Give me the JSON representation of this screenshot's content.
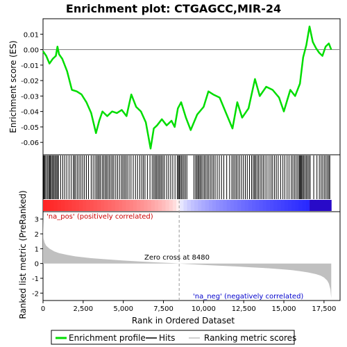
{
  "chart_data": {
    "type": "line",
    "title": "Enrichment plot: CTGAGCC,MIR-24",
    "top_panel": {
      "ylabel": "Enrichment score (ES)",
      "ylim": [
        -0.068,
        0.02
      ],
      "yticks": [
        0.01,
        0.0,
        -0.01,
        -0.02,
        -0.03,
        -0.04,
        -0.05,
        -0.06
      ],
      "ytick_labels": [
        "0.01",
        "0.00",
        "-0.01",
        "-0.02",
        "-0.03",
        "-0.04",
        "-0.05",
        "-0.06"
      ],
      "series": [
        {
          "name": "Enrichment profile",
          "color": "#00dd00",
          "x": [
            0,
            200,
            400,
            600,
            800,
            900,
            1000,
            1200,
            1500,
            1800,
            2100,
            2400,
            2700,
            3000,
            3300,
            3500,
            3700,
            4000,
            4300,
            4600,
            4900,
            5200,
            5500,
            5800,
            6100,
            6400,
            6700,
            6900,
            7100,
            7400,
            7700,
            8000,
            8200,
            8400,
            8600,
            8900,
            9200,
            9600,
            10000,
            10300,
            10600,
            11000,
            11400,
            11800,
            12100,
            12400,
            12800,
            13200,
            13500,
            13900,
            14300,
            14700,
            15000,
            15400,
            15700,
            16000,
            16200,
            16400,
            16600,
            16800,
            17000,
            17200,
            17400,
            17600,
            17800,
            17950
          ],
          "y": [
            -0.001,
            -0.004,
            -0.009,
            -0.006,
            -0.004,
            0.002,
            -0.003,
            -0.006,
            -0.014,
            -0.026,
            -0.027,
            -0.029,
            -0.034,
            -0.041,
            -0.054,
            -0.046,
            -0.04,
            -0.043,
            -0.04,
            -0.041,
            -0.039,
            -0.043,
            -0.029,
            -0.037,
            -0.04,
            -0.047,
            -0.064,
            -0.051,
            -0.049,
            -0.045,
            -0.049,
            -0.046,
            -0.05,
            -0.038,
            -0.034,
            -0.044,
            -0.052,
            -0.042,
            -0.037,
            -0.027,
            -0.029,
            -0.031,
            -0.041,
            -0.051,
            -0.034,
            -0.044,
            -0.038,
            -0.019,
            -0.03,
            -0.024,
            -0.026,
            -0.031,
            -0.04,
            -0.026,
            -0.03,
            -0.022,
            -0.005,
            0.003,
            0.015,
            0.005,
            0.001,
            -0.002,
            -0.004,
            0.002,
            0.004,
            0.0
          ]
        }
      ]
    },
    "hits_panel": {
      "hit_ranks": [
        40,
        90,
        140,
        230,
        300,
        380,
        430,
        480,
        560,
        620,
        690,
        760,
        830,
        900,
        960,
        1100,
        1230,
        1350,
        1480,
        1620,
        1750,
        1880,
        1960,
        2040,
        2150,
        2250,
        2360,
        2470,
        2580,
        2700,
        2830,
        3000,
        3120,
        3240,
        3340,
        3420,
        3500,
        3580,
        3690,
        3780,
        3870,
        3950,
        4040,
        4130,
        4230,
        4320,
        4410,
        4530,
        4640,
        4760,
        4880,
        4970,
        5060,
        5150,
        5240,
        5360,
        5480,
        5620,
        5760,
        5890,
        6030,
        6150,
        6250,
        6350,
        6500,
        6660,
        6800,
        6900,
        6980,
        7060,
        7140,
        7220,
        7300,
        7380,
        7470,
        7560,
        7700,
        7820,
        7950,
        8080,
        8220,
        8360,
        8430,
        8480,
        8540,
        8620,
        8700,
        8780,
        8870,
        8960,
        9400,
        9500,
        9580,
        9650,
        9720,
        9790,
        9870,
        9960,
        10050,
        10140,
        10230,
        10320,
        10420,
        10520,
        10620,
        10720,
        10850,
        10980,
        11120,
        11260,
        11440,
        11620,
        11760,
        11850,
        11950,
        12040,
        12140,
        12240,
        12360,
        12480,
        12600,
        12720,
        12860,
        12990,
        13090,
        13170,
        13240,
        13330,
        13420,
        13520,
        13620,
        13720,
        13830,
        13950,
        14080,
        14200,
        14300,
        14420,
        14530,
        14650,
        14800,
        14940,
        15060,
        15200,
        15320,
        15460,
        15560,
        15660,
        15760,
        15860,
        15950,
        16000,
        16050,
        16110,
        16170,
        16240,
        16320,
        16400,
        16480,
        16560,
        16640,
        16860,
        17060,
        17210,
        17320,
        17420,
        17520,
        17620,
        17710,
        17800,
        17860
      ]
    },
    "metric_panel": {
      "ylabel": "Ranked list metric (PreRanked)",
      "ylim": [
        -2.5,
        3.5
      ],
      "yticks": [
        3,
        2,
        1,
        0,
        -1,
        -2
      ],
      "ytick_labels": [
        "3",
        "2",
        "1",
        "0",
        "-1",
        "-2"
      ],
      "xlabel": "Rank in Ordered Dataset",
      "xlim": [
        0,
        18500
      ],
      "xticks": [
        0,
        2500,
        5000,
        7500,
        10000,
        12500,
        15000,
        17500
      ],
      "xtick_labels": [
        "0",
        "2,500",
        "5,000",
        "7,500",
        "10,000",
        "12,500",
        "15,000",
        "17,500"
      ],
      "series": [
        {
          "name": "Ranking metric scores",
          "color": "#c0c0c0",
          "x": [
            0,
            30,
            100,
            200,
            400,
            700,
            1000,
            1500,
            2000,
            3000,
            4000,
            5000,
            6000,
            7000,
            8000,
            8480,
            9000,
            10000,
            11000,
            12000,
            13000,
            14000,
            15000,
            15500,
            16000,
            16500,
            17000,
            17300,
            17500,
            17700,
            17800,
            17900,
            17950
          ],
          "y": [
            3.3,
            1.7,
            1.4,
            1.2,
            1.0,
            0.82,
            0.7,
            0.58,
            0.48,
            0.36,
            0.28,
            0.2,
            0.14,
            0.08,
            0.03,
            0.0,
            -0.04,
            -0.1,
            -0.15,
            -0.2,
            -0.26,
            -0.32,
            -0.4,
            -0.45,
            -0.52,
            -0.6,
            -0.72,
            -0.82,
            -0.95,
            -1.15,
            -1.35,
            -1.75,
            -2.35
          ]
        }
      ],
      "zero_cross_rank": 8480,
      "annotations": {
        "zero_cross": "Zero cross at 8480",
        "pos_label": "'na_pos' (positively correlated)",
        "neg_label": "'na_neg' (negatively correlated)"
      }
    },
    "legend": {
      "placement": "bottom",
      "entries": [
        "Enrichment profile",
        "Hits",
        "Ranking metric scores"
      ]
    },
    "colors": {
      "es_line": "#00dd00",
      "pos_text": "#cc0000",
      "neg_text": "#0000cc",
      "metric_fill": "#c0c0c0"
    }
  }
}
